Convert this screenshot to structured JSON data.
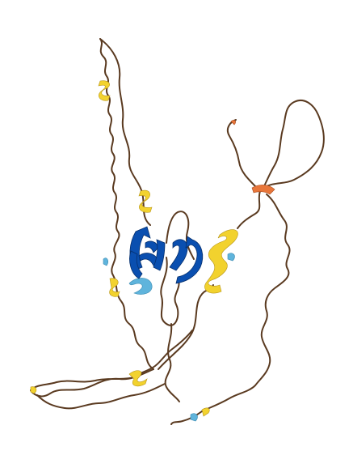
{
  "structure": {
    "representation": "cartoon",
    "background_color": "#ffffff",
    "confidence_colors": {
      "very_high": "#0a4fb0",
      "confident": "#5fb4dc",
      "low": "#f2d22e",
      "very_low": "#e8763a",
      "coil": "#5a3a20"
    }
  }
}
